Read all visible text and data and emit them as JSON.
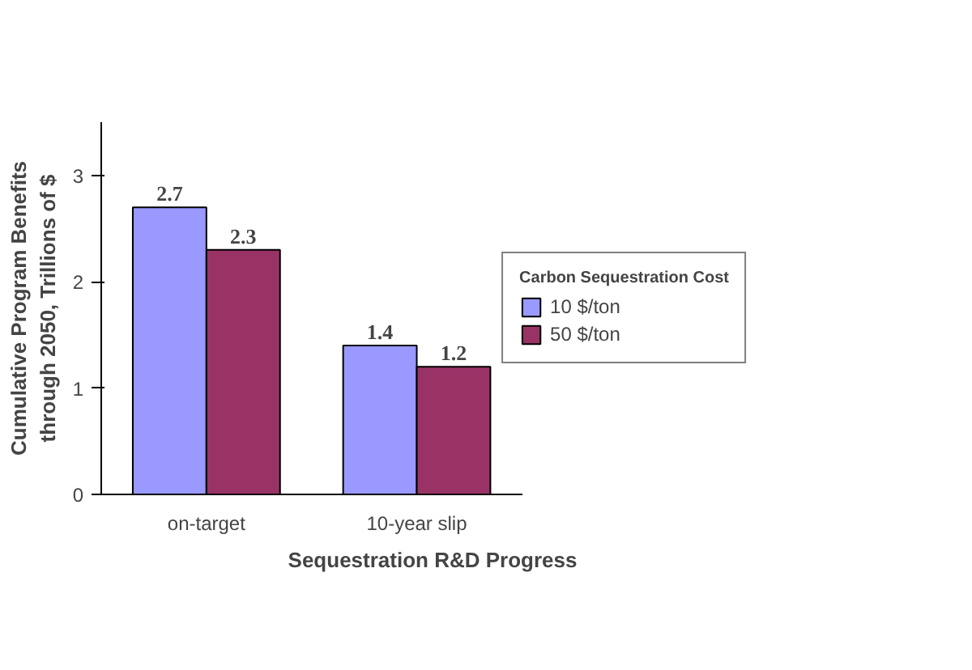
{
  "chart_data": {
    "type": "bar",
    "categories": [
      "on-target",
      "10-year slip"
    ],
    "series": [
      {
        "name": "10 $/ton",
        "color": "#9999ff",
        "values": [
          2.7,
          1.4
        ]
      },
      {
        "name": "50 $/ton",
        "color": "#993366",
        "values": [
          2.3,
          1.2
        ]
      }
    ],
    "xlabel": "Sequestration R&D Progress",
    "ylabel": "Cumulative Program Benefits through 2050, Trillions of $",
    "legend_title": "Carbon Sequestration Cost",
    "ylim": [
      0,
      3.5
    ],
    "yticks": [
      0,
      1,
      2,
      3
    ],
    "data_labels": true,
    "legend": "right",
    "grid": false
  }
}
